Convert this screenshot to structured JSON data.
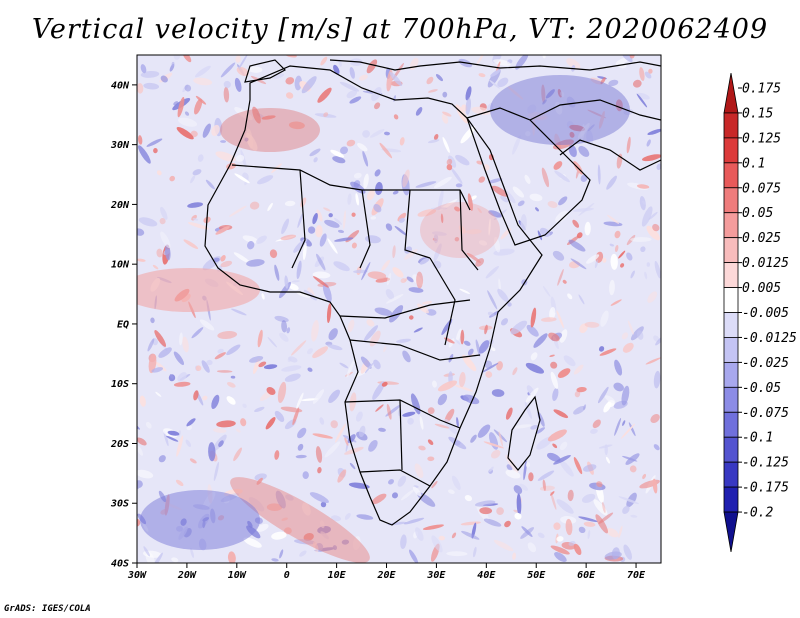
{
  "title": "Vertical velocity [m/s] at 700hPa, VT: 2020062409",
  "credit": "GrADS: IGES/COLA",
  "map": {
    "lon_range": [
      -30,
      75
    ],
    "lat_range": [
      -40,
      45
    ],
    "lon_ticks": [
      "30W",
      "20W",
      "10W",
      "0",
      "10E",
      "20E",
      "30E",
      "40E",
      "50E",
      "60E",
      "70E"
    ],
    "lat_ticks": [
      "40N",
      "30N",
      "20N",
      "10N",
      "EQ",
      "10S",
      "20S",
      "30S",
      "40S"
    ],
    "variable": "vertical velocity",
    "level": "700hPa",
    "valid_time": "2020062409"
  },
  "colorbar": {
    "labels": [
      "0.175",
      "0.15",
      "0.125",
      "0.1",
      "0.075",
      "0.05",
      "0.025",
      "0.0125",
      "0.005",
      "-0.005",
      "-0.0125",
      "-0.025",
      "-0.05",
      "-0.075",
      "-0.1",
      "-0.125",
      "-0.175",
      "-0.2"
    ],
    "colors": [
      "#b01818",
      "#c82828",
      "#dc3a3a",
      "#e85a5a",
      "#ef7c7c",
      "#f49c9c",
      "#f8bcbc",
      "#fcd8d8",
      "#ffffff",
      "#dcdcf8",
      "#c4c4f4",
      "#a8a8ee",
      "#8c8ce6",
      "#7070dc",
      "#5454d0",
      "#3838c2",
      "#2020b0",
      "#10108e"
    ]
  }
}
